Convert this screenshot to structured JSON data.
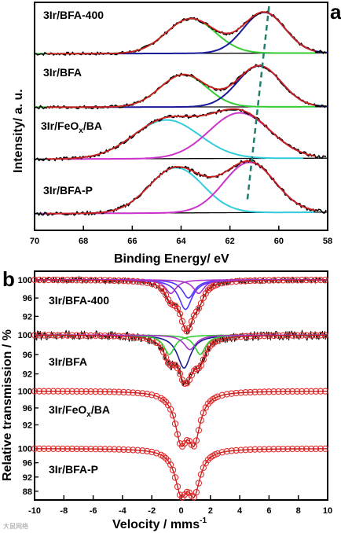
{
  "colors": {
    "data": "#000000",
    "sum": "#cc1f1f",
    "green": "#33cc33",
    "blue": "#1a1a99",
    "cyan": "#33ccdd",
    "magenta": "#cc33cc",
    "base": "#0a0a0a",
    "violet": "#5533ff",
    "purple": "#aa33cc",
    "marker": "#e23030",
    "dashed": "#1f7f6f"
  },
  "watermark": "大鼠网络",
  "chart_data": [
    {
      "panel": "a",
      "type": "line",
      "xlabel": "Binding Energy/ eV",
      "ylabel": "Intensity/ a. u.",
      "xlim": [
        70,
        58
      ],
      "xticks": [
        70,
        68,
        66,
        64,
        62,
        60,
        58
      ],
      "series": [
        {
          "name": "3Ir/BFA-400",
          "label": "3Ir/BFA-400",
          "label_main": "3Ir/BFA-400",
          "label_sub": "",
          "label_tail": "",
          "baseline": [
            0.03,
            0.05
          ],
          "peaks": [
            {
              "center": 63.6,
              "height": 0.85,
              "width": 1.0,
              "color_key": "green",
              "range": [
                70,
                58.5
              ]
            },
            {
              "center": 60.6,
              "height": 1.0,
              "width": 0.85,
              "color_key": "blue",
              "range": [
                68,
                58
              ]
            }
          ]
        },
        {
          "name": "3Ir/BFA",
          "label": "3Ir/BFA",
          "label_main": "3Ir/BFA",
          "label_sub": "",
          "label_tail": "",
          "baseline": [
            0.03,
            0.04
          ],
          "peaks": [
            {
              "center": 63.9,
              "height": 0.75,
              "width": 0.95,
              "color_key": "green",
              "range": [
                70,
                58.5
              ]
            },
            {
              "center": 60.8,
              "height": 0.95,
              "width": 0.9,
              "color_key": "blue",
              "range": [
                68,
                58
              ]
            }
          ]
        },
        {
          "name": "3Ir/FeOx/BA",
          "label": "3Ir/FeOx/BA",
          "label_main": "3Ir/FeO",
          "label_sub": "x",
          "label_tail": "/BA",
          "baseline": [
            0.08,
            0.1
          ],
          "peaks": [
            {
              "center": 64.6,
              "height": 0.85,
              "width": 1.35,
              "color_key": "cyan",
              "range": [
                69,
                59
              ]
            },
            {
              "center": 61.6,
              "height": 1.0,
              "width": 1.25,
              "color_key": "magenta",
              "range": [
                69,
                59
              ]
            }
          ]
        },
        {
          "name": "3Ir/BFA-P",
          "label": "3Ir/BFA-P",
          "label_main": "3Ir/BFA-P",
          "label_sub": "",
          "label_tail": "",
          "baseline": [
            0.05,
            0.08
          ],
          "peaks": [
            {
              "center": 64.2,
              "height": 0.9,
              "width": 1.1,
              "color_key": "cyan",
              "range": [
                70,
                58.5
              ]
            },
            {
              "center": 61.2,
              "height": 1.0,
              "width": 1.05,
              "color_key": "magenta",
              "range": [
                70,
                58.5
              ]
            }
          ]
        }
      ],
      "guide_line": {
        "points": [
          [
            60.4,
            98
          ],
          [
            61.3,
            258
          ]
        ],
        "style": "dashed"
      }
    },
    {
      "panel": "b",
      "type": "scatter",
      "xlabel": "Velocity / mms",
      "xlabel_sup": "-1",
      "ylabel": "Relative transmission / %",
      "xlim": [
        -10,
        10
      ],
      "xticks": [
        -10,
        -8,
        -6,
        -4,
        -2,
        0,
        2,
        4,
        6,
        8,
        10
      ],
      "series": [
        {
          "name": "3Ir/BFA-400",
          "label": "3Ir/BFA-400",
          "label_main": "3Ir/BFA-400",
          "label_sub": "",
          "label_tail": "",
          "ylim": [
            90,
            101
          ],
          "yticks": [
            100,
            96,
            92
          ],
          "fit_colors": [
            "violet",
            "violet",
            "purple",
            "purple"
          ],
          "components": [
            {
              "center": 0.3,
              "depth": 6.5,
              "width": 0.55
            },
            {
              "center": 0.5,
              "depth": 4.0,
              "width": 0.5
            },
            {
              "center": -0.7,
              "depth": 3.0,
              "width": 0.45
            },
            {
              "center": 1.2,
              "depth": 3.0,
              "width": 0.45
            }
          ],
          "noise": 0.6
        },
        {
          "name": "3Ir/BFA",
          "label": "3Ir/BFA",
          "label_main": "3Ir/BFA",
          "label_sub": "",
          "label_tail": "",
          "ylim": [
            90,
            101
          ],
          "yticks": [
            100,
            96,
            92
          ],
          "fit_colors": [
            "blue",
            "green",
            "green",
            "purple"
          ],
          "components": [
            {
              "center": 0.2,
              "depth": 6.8,
              "width": 0.55
            },
            {
              "center": -0.8,
              "depth": 4.0,
              "width": 0.45
            },
            {
              "center": 1.3,
              "depth": 4.0,
              "width": 0.45
            },
            {
              "center": 0.6,
              "depth": 3.0,
              "width": 0.5
            }
          ],
          "noise": 0.9
        },
        {
          "name": "3Ir/FeOx/BA",
          "label": "3Ir/FeOx/BA",
          "label_main": "3Ir/FeO",
          "label_sub": "x",
          "label_tail": "/BA",
          "ylim": [
            88,
            101
          ],
          "yticks": [
            100,
            96,
            92
          ],
          "fit_colors": [],
          "components": [
            {
              "center": 0.0,
              "depth": 10.5,
              "width": 0.5
            },
            {
              "center": 0.9,
              "depth": 10.5,
              "width": 0.5
            }
          ],
          "noise": 0.1
        },
        {
          "name": "3Ir/BFA-P",
          "label": "3Ir/BFA-P",
          "label_main": "3Ir/BFA-P",
          "label_sub": "",
          "label_tail": "",
          "ylim": [
            86,
            101
          ],
          "yticks": [
            100,
            96,
            92,
            88
          ],
          "fit_colors": [],
          "components": [
            {
              "center": 0.0,
              "depth": 11.0,
              "width": 0.5
            },
            {
              "center": 0.9,
              "depth": 11.0,
              "width": 0.5
            }
          ],
          "noise": 0.1
        }
      ]
    }
  ]
}
